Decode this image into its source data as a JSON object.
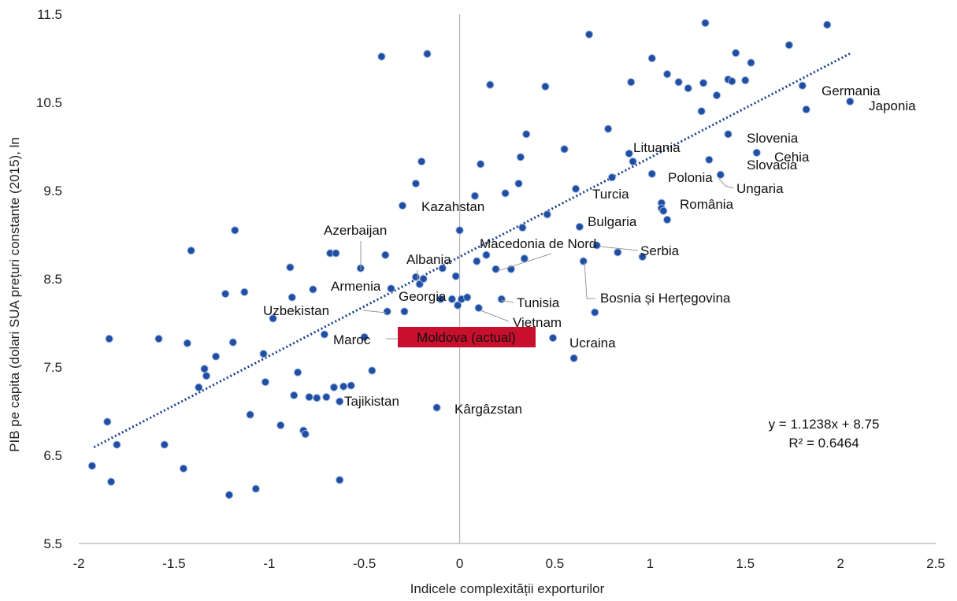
{
  "chart_data": {
    "type": "scatter",
    "title": "",
    "xlabel": "Indicele complexității exporturilor",
    "ylabel": "PIB pe capita (dolari SUA prețuri constante (2015), ln",
    "xlim": [
      -2,
      2.5
    ],
    "ylim": [
      5.5,
      11.5
    ],
    "xticks": [
      "-2",
      "-1.5",
      "-1",
      "-0.5",
      "0",
      "0.5",
      "1",
      "1.5",
      "2",
      "2.5"
    ],
    "yticks": [
      "5.5",
      "6.5",
      "7.5",
      "8.5",
      "9.5",
      "10.5",
      "11.5"
    ],
    "grid": false,
    "colors": {
      "point": "#1f4ea3",
      "trend": "#1a3f95",
      "highlight": "#c8102e",
      "axis": "#b3b3b3",
      "leader": "#999999"
    },
    "trendline": {
      "slope": 1.1238,
      "intercept": 8.75,
      "x_range": [
        -1.92,
        2.05
      ],
      "equation": "y = 1.1238x + 8.75",
      "r2": "R² = 0.6464"
    },
    "points": [
      [
        -1.93,
        6.38
      ],
      [
        -1.83,
        6.2
      ],
      [
        -1.8,
        6.62
      ],
      [
        -1.85,
        6.88
      ],
      [
        -1.84,
        7.82
      ],
      [
        -1.58,
        7.82
      ],
      [
        -1.55,
        6.62
      ],
      [
        -1.45,
        6.35
      ],
      [
        -1.43,
        7.77
      ],
      [
        -1.41,
        8.82
      ],
      [
        -1.37,
        7.27
      ],
      [
        -1.34,
        7.48
      ],
      [
        -1.33,
        7.4
      ],
      [
        -1.28,
        7.62
      ],
      [
        -1.23,
        8.33
      ],
      [
        -1.21,
        6.05
      ],
      [
        -1.19,
        7.78
      ],
      [
        -1.18,
        9.05
      ],
      [
        -1.13,
        8.35
      ],
      [
        -1.1,
        6.96
      ],
      [
        -1.07,
        6.12
      ],
      [
        -1.03,
        7.65
      ],
      [
        -1.02,
        7.33
      ],
      [
        -0.98,
        8.05
      ],
      [
        -0.94,
        6.84
      ],
      [
        -0.89,
        8.63
      ],
      [
        -0.88,
        8.29
      ],
      [
        -0.87,
        7.18
      ],
      [
        -0.85,
        7.44
      ],
      [
        -0.82,
        6.78
      ],
      [
        -0.81,
        6.74
      ],
      [
        -0.79,
        7.16
      ],
      [
        -0.77,
        8.38
      ],
      [
        -0.75,
        7.15
      ],
      [
        -0.71,
        7.87
      ],
      [
        -0.7,
        7.16
      ],
      [
        -0.68,
        8.79
      ],
      [
        -0.66,
        7.27
      ],
      [
        -0.65,
        8.79
      ],
      [
        -0.63,
        6.22
      ],
      [
        -0.63,
        7.11
      ],
      [
        -0.61,
        7.28
      ],
      [
        -0.57,
        7.29
      ],
      [
        -0.52,
        8.62
      ],
      [
        -0.5,
        7.84
      ],
      [
        -0.46,
        7.46
      ],
      [
        -0.41,
        11.02
      ],
      [
        -0.39,
        8.77
      ],
      [
        -0.38,
        8.13
      ],
      [
        -0.36,
        8.39
      ],
      [
        -0.3,
        9.33
      ],
      [
        -0.29,
        8.13
      ],
      [
        -0.23,
        9.58
      ],
      [
        -0.23,
        8.52
      ],
      [
        -0.21,
        8.44
      ],
      [
        -0.2,
        9.83
      ],
      [
        -0.19,
        8.5
      ],
      [
        -0.17,
        11.05
      ],
      [
        -0.12,
        7.04
      ],
      [
        -0.1,
        8.27
      ],
      [
        -0.09,
        8.62
      ],
      [
        -0.04,
        8.27
      ],
      [
        -0.02,
        8.53
      ],
      [
        -0.01,
        8.2
      ],
      [
        0.0,
        9.05
      ],
      [
        0.01,
        8.27
      ],
      [
        0.04,
        8.29
      ],
      [
        0.08,
        9.44
      ],
      [
        0.09,
        8.7
      ],
      [
        0.1,
        8.17
      ],
      [
        0.11,
        9.8
      ],
      [
        0.14,
        8.77
      ],
      [
        0.16,
        10.7
      ],
      [
        0.19,
        8.61
      ],
      [
        0.22,
        8.27
      ],
      [
        0.24,
        9.47
      ],
      [
        0.27,
        8.61
      ],
      [
        0.31,
        9.58
      ],
      [
        0.32,
        9.88
      ],
      [
        0.33,
        9.08
      ],
      [
        0.34,
        8.73
      ],
      [
        0.35,
        10.14
      ],
      [
        0.45,
        10.68
      ],
      [
        0.46,
        9.23
      ],
      [
        0.49,
        7.83
      ],
      [
        0.55,
        9.97
      ],
      [
        0.6,
        7.6
      ],
      [
        0.61,
        9.52
      ],
      [
        0.63,
        9.09
      ],
      [
        0.65,
        8.7
      ],
      [
        0.68,
        11.27
      ],
      [
        0.71,
        8.12
      ],
      [
        0.72,
        8.88
      ],
      [
        0.78,
        10.2
      ],
      [
        0.8,
        9.65
      ],
      [
        0.83,
        8.8
      ],
      [
        0.89,
        9.92
      ],
      [
        0.9,
        10.73
      ],
      [
        0.91,
        9.83
      ],
      [
        0.96,
        8.75
      ],
      [
        1.01,
        9.69
      ],
      [
        1.01,
        11.0
      ],
      [
        1.06,
        9.36
      ],
      [
        1.06,
        9.3
      ],
      [
        1.07,
        9.27
      ],
      [
        1.09,
        10.82
      ],
      [
        1.09,
        9.17
      ],
      [
        1.15,
        10.73
      ],
      [
        1.2,
        10.66
      ],
      [
        1.27,
        10.4
      ],
      [
        1.28,
        10.72
      ],
      [
        1.29,
        11.4
      ],
      [
        1.31,
        9.85
      ],
      [
        1.35,
        10.58
      ],
      [
        1.37,
        9.68
      ],
      [
        1.41,
        10.14
      ],
      [
        1.41,
        10.76
      ],
      [
        1.43,
        10.74
      ],
      [
        1.45,
        11.06
      ],
      [
        1.5,
        10.75
      ],
      [
        1.53,
        10.95
      ],
      [
        1.56,
        9.93
      ],
      [
        1.73,
        11.15
      ],
      [
        1.8,
        10.69
      ],
      [
        1.82,
        10.42
      ],
      [
        1.93,
        11.38
      ],
      [
        2.05,
        10.51
      ]
    ],
    "labels": [
      {
        "text": "Germania",
        "x": 1.8,
        "y": 10.69
      },
      {
        "text": "Japonia",
        "x": 2.05,
        "y": 10.51
      },
      {
        "text": "Slovenia",
        "x": 1.41,
        "y": 10.14
      },
      {
        "text": "Lituania",
        "x": 0.89,
        "y": 9.92
      },
      {
        "text": "Cehia",
        "x": 1.56,
        "y": 9.93
      },
      {
        "text": "Slovacia",
        "x": 1.31,
        "y": 9.85
      },
      {
        "text": "Polonia",
        "x": 1.01,
        "y": 9.69
      },
      {
        "text": "Ungaria",
        "x": 1.37,
        "y": 9.68
      },
      {
        "text": "Turcia",
        "x": 0.61,
        "y": 9.52
      },
      {
        "text": "România",
        "x": 1.06,
        "y": 9.36
      },
      {
        "text": "Kazahstan",
        "x": -0.3,
        "y": 9.33
      },
      {
        "text": "Bulgaria",
        "x": 0.63,
        "y": 9.09
      },
      {
        "text": "Azerbaijan",
        "x": -0.52,
        "y": 8.62
      },
      {
        "text": "Macedonia de Nord",
        "x": 0.34,
        "y": 8.73
      },
      {
        "text": "Serbia",
        "x": 0.72,
        "y": 8.88
      },
      {
        "text": "Albania",
        "x": -0.19,
        "y": 8.5
      },
      {
        "text": "Armenia",
        "x": -0.36,
        "y": 8.39
      },
      {
        "text": "Georgia",
        "x": -0.1,
        "y": 8.27
      },
      {
        "text": "Tunisia",
        "x": 0.22,
        "y": 8.27
      },
      {
        "text": "Bosnia și Herțegovina",
        "x": 0.65,
        "y": 8.7
      },
      {
        "text": "Uzbekistan",
        "x": -0.38,
        "y": 8.13
      },
      {
        "text": "Vietnam",
        "x": 0.1,
        "y": 8.17
      },
      {
        "text": "Maroc",
        "x": -0.5,
        "y": 7.84
      },
      {
        "text": "Moldova (actual)",
        "x": -0.29,
        "y": 8.13
      },
      {
        "text": "Ucraina",
        "x": 0.49,
        "y": 7.83
      },
      {
        "text": "Tajikistan",
        "x": -0.63,
        "y": 7.11
      },
      {
        "text": "Kârgâzstan",
        "x": -0.12,
        "y": 7.04
      }
    ]
  }
}
